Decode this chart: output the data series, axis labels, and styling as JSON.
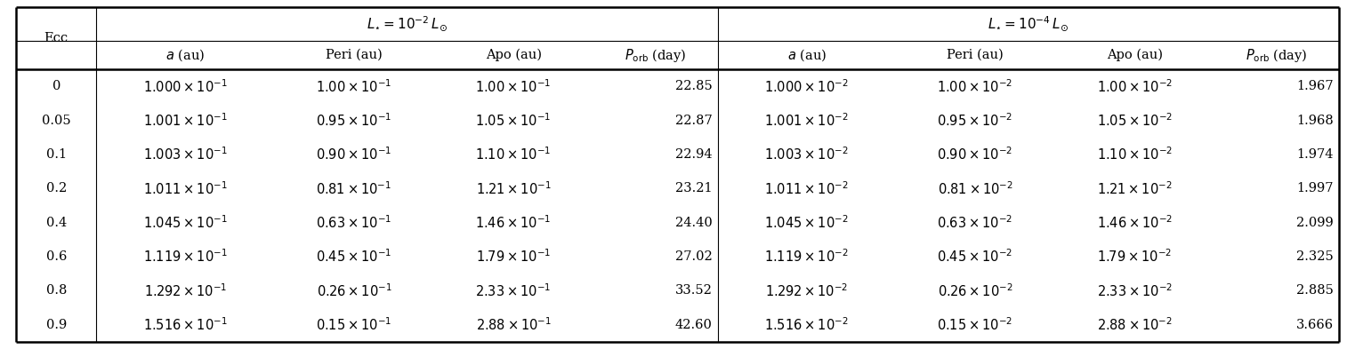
{
  "ecc": [
    "0",
    "0.05",
    "0.1",
    "0.2",
    "0.4",
    "0.6",
    "0.8",
    "0.9"
  ],
  "group1_header": "$L_{\\star} = 10^{-2}\\, L_{\\odot}$",
  "group2_header": "$L_{\\star} = 10^{-4}\\, L_{\\odot}$",
  "group1": {
    "a": [
      "$1.000 \\times 10^{-1}$",
      "$1.001 \\times 10^{-1}$",
      "$1.003 \\times 10^{-1}$",
      "$1.011 \\times 10^{-1}$",
      "$1.045 \\times 10^{-1}$",
      "$1.119 \\times 10^{-1}$",
      "$1.292 \\times 10^{-1}$",
      "$1.516 \\times 10^{-1}$"
    ],
    "peri": [
      "$1.00 \\times 10^{-1}$",
      "$0.95 \\times 10^{-1}$",
      "$0.90 \\times 10^{-1}$",
      "$0.81 \\times 10^{-1}$",
      "$0.63 \\times 10^{-1}$",
      "$0.45 \\times 10^{-1}$",
      "$0.26 \\times 10^{-1}$",
      "$0.15 \\times 10^{-1}$"
    ],
    "apo": [
      "$1.00 \\times 10^{-1}$",
      "$1.05 \\times 10^{-1}$",
      "$1.10 \\times 10^{-1}$",
      "$1.21 \\times 10^{-1}$",
      "$1.46 \\times 10^{-1}$",
      "$1.79 \\times 10^{-1}$",
      "$2.33 \\times 10^{-1}$",
      "$2.88 \\times 10^{-1}$"
    ],
    "porb": [
      "22.85",
      "22.87",
      "22.94",
      "23.21",
      "24.40",
      "27.02",
      "33.52",
      "42.60"
    ]
  },
  "group2": {
    "a": [
      "$1.000 \\times 10^{-2}$",
      "$1.001 \\times 10^{-2}$",
      "$1.003 \\times 10^{-2}$",
      "$1.011 \\times 10^{-2}$",
      "$1.045 \\times 10^{-2}$",
      "$1.119 \\times 10^{-2}$",
      "$1.292 \\times 10^{-2}$",
      "$1.516 \\times 10^{-2}$"
    ],
    "peri": [
      "$1.00 \\times 10^{-2}$",
      "$0.95 \\times 10^{-2}$",
      "$0.90 \\times 10^{-2}$",
      "$0.81 \\times 10^{-2}$",
      "$0.63 \\times 10^{-2}$",
      "$0.45 \\times 10^{-2}$",
      "$0.26 \\times 10^{-2}$",
      "$0.15 \\times 10^{-2}$"
    ],
    "apo": [
      "$1.00 \\times 10^{-2}$",
      "$1.05 \\times 10^{-2}$",
      "$1.10 \\times 10^{-2}$",
      "$1.21 \\times 10^{-2}$",
      "$1.46 \\times 10^{-2}$",
      "$1.79 \\times 10^{-2}$",
      "$2.33 \\times 10^{-2}$",
      "$2.88 \\times 10^{-2}$"
    ],
    "porb": [
      "1.967",
      "1.968",
      "1.974",
      "1.997",
      "2.099",
      "2.325",
      "2.885",
      "3.666"
    ]
  },
  "bg_color": "#ffffff",
  "text_color": "#000000",
  "fontsize": 10.5,
  "header_fontsize": 11
}
